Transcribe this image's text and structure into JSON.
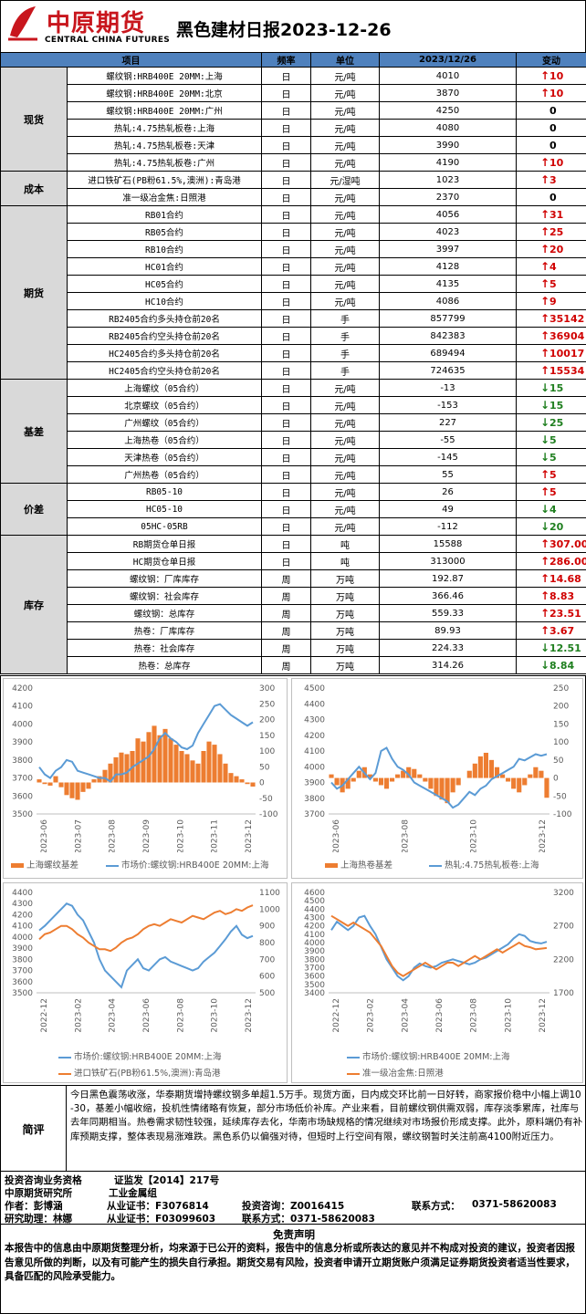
{
  "header": {
    "logo_cn": "中原期货",
    "logo_en": "CENTRAL CHINA FUTURES",
    "title": "黑色建材日报2023-12-26"
  },
  "colors": {
    "up": "#d00000",
    "down": "#1f7f1f",
    "header_bg": "#4f81bd",
    "category_bg": "#d9d9d9",
    "orange": "#ed7d31",
    "blue": "#5b9bd5"
  },
  "table": {
    "columns": [
      "项目",
      "频率",
      "单位",
      "2023/12/26",
      "变动"
    ],
    "groups": [
      {
        "category": "现货",
        "rows": [
          {
            "item": "螺纹钢:HRB400E 20MM:上海",
            "freq": "日",
            "unit": "元/吨",
            "value": "4010",
            "dir": "up",
            "change": "10"
          },
          {
            "item": "螺纹钢:HRB400E 20MM:北京",
            "freq": "日",
            "unit": "元/吨",
            "value": "3870",
            "dir": "up",
            "change": "10"
          },
          {
            "item": "螺纹钢:HRB400E 20MM:广州",
            "freq": "日",
            "unit": "元/吨",
            "value": "4250",
            "dir": "flat",
            "change": "0"
          },
          {
            "item": "热轧:4.75热轧板卷:上海",
            "freq": "日",
            "unit": "元/吨",
            "value": "4080",
            "dir": "flat",
            "change": "0"
          },
          {
            "item": "热轧:4.75热轧板卷:天津",
            "freq": "日",
            "unit": "元/吨",
            "value": "3990",
            "dir": "flat",
            "change": "0"
          },
          {
            "item": "热轧:4.75热轧板卷:广州",
            "freq": "日",
            "unit": "元/吨",
            "value": "4190",
            "dir": "up",
            "change": "10"
          }
        ]
      },
      {
        "category": "成本",
        "rows": [
          {
            "item": "进口铁矿石(PB粉61.5%,澳洲):青岛港",
            "freq": "日",
            "unit": "元/湿吨",
            "value": "1023",
            "dir": "up",
            "change": "3"
          },
          {
            "item": "准一级冶金焦:日照港",
            "freq": "日",
            "unit": "元/吨",
            "value": "2370",
            "dir": "flat",
            "change": "0"
          }
        ]
      },
      {
        "category": "期货",
        "rows": [
          {
            "item": "RB01合约",
            "freq": "日",
            "unit": "元/吨",
            "value": "4056",
            "dir": "up",
            "change": "31"
          },
          {
            "item": "RB05合约",
            "freq": "日",
            "unit": "元/吨",
            "value": "4023",
            "dir": "up",
            "change": "25"
          },
          {
            "item": "RB10合约",
            "freq": "日",
            "unit": "元/吨",
            "value": "3997",
            "dir": "up",
            "change": "20"
          },
          {
            "item": "HC01合约",
            "freq": "日",
            "unit": "元/吨",
            "value": "4128",
            "dir": "up",
            "change": "4"
          },
          {
            "item": "HC05合约",
            "freq": "日",
            "unit": "元/吨",
            "value": "4135",
            "dir": "up",
            "change": "5"
          },
          {
            "item": "HC10合约",
            "freq": "日",
            "unit": "元/吨",
            "value": "4086",
            "dir": "up",
            "change": "9"
          },
          {
            "item": "RB2405合约多头持仓前20名",
            "freq": "日",
            "unit": "手",
            "value": "857799",
            "dir": "up",
            "change": "35142"
          },
          {
            "item": "RB2405合约空头持仓前20名",
            "freq": "日",
            "unit": "手",
            "value": "842383",
            "dir": "up",
            "change": "36904"
          },
          {
            "item": "HC2405合约多头持仓前20名",
            "freq": "日",
            "unit": "手",
            "value": "689494",
            "dir": "up",
            "change": "10017"
          },
          {
            "item": "HC2405合约空头持仓前20名",
            "freq": "日",
            "unit": "手",
            "value": "724635",
            "dir": "up",
            "change": "15534"
          }
        ]
      },
      {
        "category": "基差",
        "rows": [
          {
            "item": "上海螺纹（05合约）",
            "freq": "日",
            "unit": "元/吨",
            "value": "-13",
            "dir": "down",
            "change": "15"
          },
          {
            "item": "北京螺纹（05合约）",
            "freq": "日",
            "unit": "元/吨",
            "value": "-153",
            "dir": "down",
            "change": "15"
          },
          {
            "item": "广州螺纹（05合约）",
            "freq": "日",
            "unit": "元/吨",
            "value": "227",
            "dir": "down",
            "change": "25"
          },
          {
            "item": "上海热卷（05合约）",
            "freq": "日",
            "unit": "元/吨",
            "value": "-55",
            "dir": "down",
            "change": "5"
          },
          {
            "item": "天津热卷（05合约）",
            "freq": "日",
            "unit": "元/吨",
            "value": "-145",
            "dir": "down",
            "change": "5"
          },
          {
            "item": "广州热卷（05合约）",
            "freq": "日",
            "unit": "元/吨",
            "value": "55",
            "dir": "up",
            "change": "5"
          }
        ]
      },
      {
        "category": "价差",
        "rows": [
          {
            "item": "RB05-10",
            "freq": "日",
            "unit": "元/吨",
            "value": "26",
            "dir": "up",
            "change": "5"
          },
          {
            "item": "HC05-10",
            "freq": "日",
            "unit": "元/吨",
            "value": "49",
            "dir": "down",
            "change": "4"
          },
          {
            "item": "05HC-05RB",
            "freq": "日",
            "unit": "元/吨",
            "value": "-112",
            "dir": "down",
            "change": "20"
          }
        ]
      },
      {
        "category": "库存",
        "rows": [
          {
            "item": "RB期货仓单日报",
            "freq": "日",
            "unit": "吨",
            "value": "15588",
            "dir": "up",
            "change": "307.00"
          },
          {
            "item": "HC期货仓单日报",
            "freq": "日",
            "unit": "吨",
            "value": "313000",
            "dir": "up",
            "change": "286.00"
          },
          {
            "item": "螺纹钢：厂库库存",
            "freq": "周",
            "unit": "万吨",
            "value": "192.87",
            "dir": "up",
            "change": "14.68"
          },
          {
            "item": "螺纹钢：社会库存",
            "freq": "周",
            "unit": "万吨",
            "value": "366.46",
            "dir": "up",
            "change": "8.83"
          },
          {
            "item": "螺纹钢：总库存",
            "freq": "周",
            "unit": "万吨",
            "value": "559.33",
            "dir": "up",
            "change": "23.51"
          },
          {
            "item": "热卷：厂库库存",
            "freq": "周",
            "unit": "万吨",
            "value": "89.93",
            "dir": "up",
            "change": "3.67"
          },
          {
            "item": "热卷：社会库存",
            "freq": "周",
            "unit": "万吨",
            "value": "224.33",
            "dir": "down",
            "change": "12.51"
          },
          {
            "item": "热卷：总库存",
            "freq": "周",
            "unit": "万吨",
            "value": "314.26",
            "dir": "down",
            "change": "8.84"
          }
        ]
      }
    ]
  },
  "chart_data": [
    {
      "type": "bar+line",
      "x_labels": [
        "2023-06",
        "2023-07",
        "2023-08",
        "2023-09",
        "2023-10",
        "2023-11",
        "2023-12"
      ],
      "left_axis": {
        "ticks": [
          "4200",
          "4100",
          "4000",
          "3900",
          "3800",
          "3700",
          "3600",
          "3500"
        ],
        "range": [
          3500,
          4200
        ]
      },
      "right_axis": {
        "ticks": [
          "300",
          "250",
          "200",
          "150",
          "100",
          "50",
          "0",
          "-50",
          "-100"
        ],
        "range": [
          -100,
          300
        ]
      },
      "series": [
        {
          "name": "上海螺纹基差",
          "kind": "bar",
          "axis": "right",
          "color": "#ed7d31",
          "values": [
            10,
            -5,
            -10,
            20,
            -15,
            -40,
            -50,
            -55,
            -30,
            -20,
            10,
            20,
            40,
            60,
            80,
            95,
            90,
            100,
            140,
            130,
            160,
            180,
            150,
            170,
            140,
            120,
            100,
            90,
            70,
            60,
            100,
            130,
            120,
            90,
            60,
            30,
            20,
            10,
            -5,
            -13
          ]
        },
        {
          "name": "市场价:螺纹钢:HRB400E 20MM:上海",
          "kind": "line",
          "axis": "left",
          "color": "#5b9bd5",
          "values": [
            3760,
            3720,
            3700,
            3740,
            3760,
            3800,
            3790,
            3740,
            3730,
            3720,
            3710,
            3700,
            3700,
            3680,
            3720,
            3720,
            3730,
            3760,
            3780,
            3800,
            3820,
            3860,
            3920,
            3950,
            3920,
            3900,
            3870,
            3860,
            3880,
            3950,
            4000,
            4050,
            4100,
            4110,
            4080,
            4050,
            4030,
            4010,
            3990,
            4010
          ]
        }
      ]
    },
    {
      "type": "bar+line",
      "x_labels": [
        "2023-06",
        "2023-08",
        "2023-10",
        "2023-12"
      ],
      "left_axis": {
        "ticks": [
          "4500",
          "4400",
          "4300",
          "4200",
          "4100",
          "4000",
          "3900",
          "3800",
          "3700"
        ],
        "range": [
          3700,
          4500
        ]
      },
      "right_axis": {
        "ticks": [
          "250",
          "200",
          "150",
          "100",
          "50",
          "0",
          "-50",
          "-100"
        ],
        "range": [
          -100,
          250
        ]
      },
      "series": [
        {
          "name": "上海热卷基差",
          "kind": "bar",
          "axis": "right",
          "color": "#ed7d31",
          "values": [
            10,
            -20,
            -40,
            -30,
            -10,
            20,
            30,
            10,
            -10,
            -20,
            -30,
            -10,
            10,
            20,
            30,
            25,
            10,
            -10,
            -30,
            -50,
            -60,
            -70,
            -40,
            -20,
            0,
            20,
            40,
            60,
            70,
            50,
            30,
            10,
            -10,
            -30,
            -40,
            -20,
            10,
            30,
            20,
            -55
          ]
        },
        {
          "name": "热轧:4.75热轧板卷:上海",
          "kind": "line",
          "axis": "left",
          "color": "#5b9bd5",
          "values": [
            3900,
            3860,
            3880,
            3920,
            3960,
            4000,
            3960,
            3920,
            3960,
            4100,
            4120,
            4050,
            4000,
            3980,
            3950,
            3900,
            3880,
            3860,
            3840,
            3820,
            3800,
            3780,
            3740,
            3760,
            3800,
            3840,
            3820,
            3860,
            3880,
            3920,
            3940,
            3960,
            3980,
            4000,
            4050,
            4040,
            4060,
            4080,
            4070,
            4080
          ]
        }
      ]
    },
    {
      "type": "line",
      "x_labels": [
        "2022-12",
        "2023-02",
        "2023-04",
        "2023-06",
        "2023-08",
        "2023-10",
        "2023-12"
      ],
      "left_axis": {
        "ticks": [
          "4400",
          "4300",
          "4200",
          "4100",
          "4000",
          "3900",
          "3800",
          "3700",
          "3600",
          "3500"
        ],
        "range": [
          3500,
          4400
        ]
      },
      "right_axis": {
        "ticks": [
          "1100",
          "1000",
          "900",
          "800",
          "700",
          "600",
          "500"
        ],
        "range": [
          500,
          1100
        ]
      },
      "series": [
        {
          "name": "市场价:螺纹钢:HRB400E 20MM:上海",
          "kind": "line",
          "axis": "left",
          "color": "#5b9bd5",
          "values": [
            4060,
            4100,
            4150,
            4200,
            4250,
            4300,
            4280,
            4200,
            4150,
            4050,
            3950,
            3800,
            3700,
            3650,
            3600,
            3550,
            3700,
            3750,
            3800,
            3720,
            3700,
            3750,
            3800,
            3820,
            3780,
            3760,
            3740,
            3720,
            3700,
            3720,
            3780,
            3820,
            3860,
            3920,
            3980,
            4050,
            4100,
            4020,
            3990,
            4010
          ]
        },
        {
          "name": "进口铁矿石(PB粉61.5%,澳洲):青岛港",
          "kind": "line",
          "axis": "right",
          "color": "#ed7d31",
          "values": [
            820,
            850,
            860,
            880,
            900,
            900,
            880,
            850,
            830,
            800,
            780,
            760,
            760,
            750,
            770,
            800,
            820,
            830,
            850,
            880,
            900,
            910,
            900,
            920,
            940,
            930,
            920,
            940,
            960,
            950,
            940,
            960,
            980,
            990,
            970,
            980,
            1000,
            990,
            1010,
            1023
          ]
        }
      ]
    },
    {
      "type": "line",
      "x_labels": [
        "2022-12",
        "2023-02",
        "2023-04",
        "2023-06",
        "2023-08",
        "2023-10",
        "2023-12"
      ],
      "left_axis": {
        "ticks": [
          "4600",
          "4500",
          "4400",
          "4300",
          "4200",
          "4100",
          "4000",
          "3900",
          "3800",
          "3700",
          "3600",
          "3500",
          "3400"
        ],
        "range": [
          3400,
          4600
        ]
      },
      "right_axis": {
        "ticks": [
          "3200",
          "2700",
          "2200",
          "1700"
        ],
        "range": [
          1700,
          3200
        ]
      },
      "series": [
        {
          "name": "市场价:螺纹钢:HRB400E 20MM:上海",
          "kind": "line",
          "axis": "left",
          "color": "#5b9bd5",
          "values": [
            4150,
            4250,
            4200,
            4150,
            4200,
            4300,
            4320,
            4200,
            4100,
            3950,
            3800,
            3700,
            3600,
            3550,
            3600,
            3700,
            3750,
            3720,
            3700,
            3720,
            3760,
            3780,
            3800,
            3780,
            3760,
            3740,
            3760,
            3800,
            3820,
            3860,
            3900,
            3940,
            3980,
            4050,
            4100,
            4080,
            4020,
            4000,
            3990,
            4010
          ]
        },
        {
          "name": "准一级冶金焦:日照港",
          "kind": "line",
          "axis": "right",
          "color": "#ed7d31",
          "values": [
            2850,
            2800,
            2750,
            2700,
            2750,
            2700,
            2650,
            2600,
            2500,
            2400,
            2250,
            2100,
            2000,
            1950,
            2000,
            2050,
            2100,
            2150,
            2100,
            2050,
            2100,
            2150,
            2150,
            2100,
            2150,
            2200,
            2250,
            2200,
            2250,
            2300,
            2350,
            2300,
            2350,
            2400,
            2450,
            2400,
            2380,
            2350,
            2360,
            2370
          ]
        }
      ]
    }
  ],
  "review": {
    "label": "简评",
    "text": "今日黑色震荡收涨，华泰期货增持螺纹钢多单超1.5万手。现货方面，日内成交环比前一日好转，商家报价稳中小幅上调10-30，基差小幅收缩，投机性情绪略有恢复，部分市场低价补库。产业来看，目前螺纹钢供需双弱，库存淡季累库，社库与去年同期相当。热卷需求韧性较强，延续库存去化，华南市场缺规格的情况继续对市场报价形成支撑。此外，原料端仍有补库预期支撑，整体表现易涨难跌。黑色系仍以偏强对待，但短时上行空间有限，螺纹钢暂时关注前高4100附近压力。"
  },
  "info": {
    "line1_a": "投资咨询业务资格",
    "line1_b": "证监发【2014】217号",
    "line2_a": "中原期货研究所",
    "line2_b": "工业金属组",
    "author_label": "作者：彭博涵",
    "cert_label": "从业证书：F3076814",
    "consult_label": "投资咨询：Z0016415",
    "contact_label": "联系方式：",
    "contact_value": "0371-58620083",
    "assistant_label": "研究助理：林娜",
    "cert2_label": "从业证书：F03099603",
    "contact2_label": "联系方式：0371-58620083"
  },
  "disclaimer": {
    "title": "免责声明",
    "text": "本报告中的信息由中原期货整理分析，均来源于已公开的资料，报告中的信息分析或所表达的意见并不构成对投资的建议，投资者因报告意见所做的判断，以及有可能产生的损失自行承担。期货交易有风险，投资者申请开立期货账户须满足证券期货投资者适当性要求，具备匹配的风险承受能力。"
  }
}
